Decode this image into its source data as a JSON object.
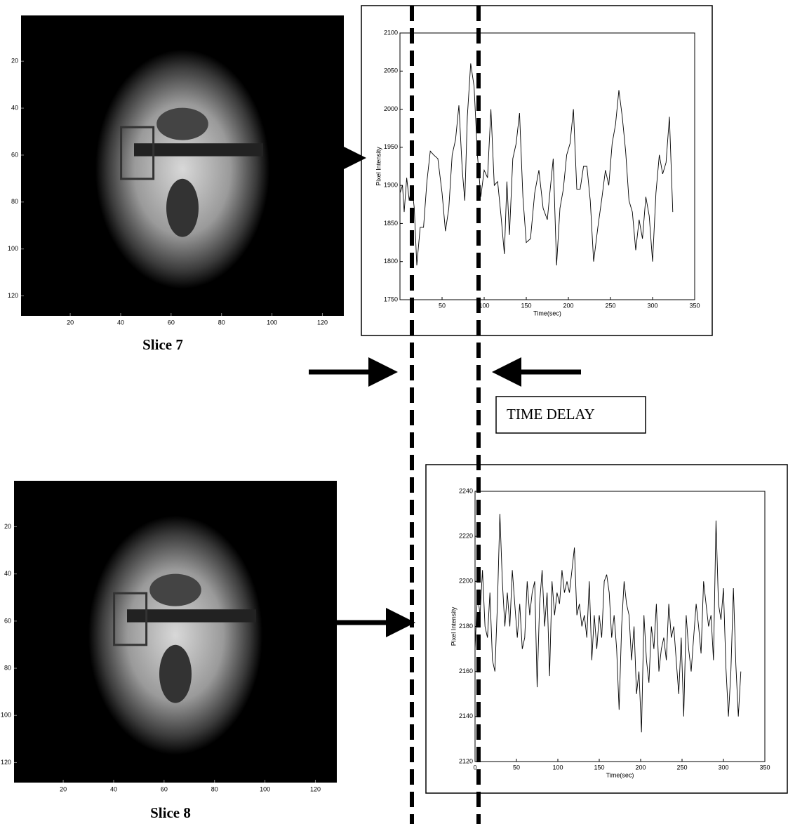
{
  "chart_data": [
    {
      "type": "image",
      "caption": "Slice 7",
      "xlim": [
        0.5,
        128.5
      ],
      "ylim": [
        0.5,
        128.5
      ],
      "xticks": [
        20,
        40,
        60,
        80,
        100,
        120
      ],
      "yticks": [
        20,
        40,
        60,
        80,
        100,
        120
      ]
    },
    {
      "type": "line",
      "xlabel": "Time(sec)",
      "ylabel": "Pixel Intensity",
      "color": "#000000",
      "xlim": [
        0,
        350
      ],
      "ylim": [
        1750,
        2100
      ],
      "xticks": [
        50,
        100,
        150,
        200,
        250,
        300,
        350
      ],
      "yticks": [
        1750,
        1800,
        1850,
        1900,
        1950,
        2000,
        2050,
        2100
      ],
      "x": [
        0,
        3,
        5,
        8,
        11,
        14,
        17,
        20,
        24,
        28,
        32,
        36,
        40,
        45,
        50,
        54,
        58,
        62,
        66,
        70,
        74,
        77,
        80,
        84,
        88,
        92,
        96,
        100,
        104,
        108,
        112,
        116,
        120,
        124,
        127,
        130,
        134,
        138,
        142,
        146,
        150,
        155,
        160,
        165,
        170,
        175,
        178,
        182,
        186,
        190,
        194,
        198,
        202,
        206,
        210,
        214,
        218,
        222,
        226,
        230,
        235,
        240,
        244,
        248,
        252,
        256,
        260,
        264,
        268,
        272,
        276,
        280,
        284,
        288,
        292,
        296,
        300,
        304,
        308,
        312,
        316,
        320,
        324
      ],
      "values": [
        1890,
        1900,
        1865,
        1910,
        1880,
        1900,
        1870,
        1795,
        1845,
        1845,
        1905,
        1945,
        1940,
        1935,
        1890,
        1840,
        1870,
        1940,
        1960,
        2005,
        1920,
        1880,
        1990,
        2060,
        2030,
        1940,
        1885,
        1920,
        1910,
        2000,
        1900,
        1905,
        1860,
        1810,
        1905,
        1835,
        1935,
        1955,
        1995,
        1885,
        1825,
        1830,
        1890,
        1920,
        1870,
        1855,
        1890,
        1935,
        1795,
        1870,
        1895,
        1940,
        1955,
        2000,
        1895,
        1895,
        1925,
        1925,
        1880,
        1800,
        1845,
        1885,
        1920,
        1900,
        1955,
        1980,
        2025,
        1990,
        1945,
        1880,
        1865,
        1815,
        1855,
        1830,
        1885,
        1860,
        1800,
        1890,
        1940,
        1915,
        1930,
        1990,
        1865
      ]
    },
    {
      "type": "image",
      "caption": "Slice 8",
      "xlim": [
        0.5,
        128.5
      ],
      "ylim": [
        0.5,
        128.5
      ],
      "xticks": [
        20,
        40,
        60,
        80,
        100,
        120
      ],
      "yticks": [
        20,
        40,
        60,
        80,
        100,
        120
      ]
    },
    {
      "type": "line",
      "xlabel": "Time(sec)",
      "ylabel": "Pixel Intensity",
      "color": "#000000",
      "xlim": [
        0,
        350
      ],
      "ylim": [
        2120,
        2240
      ],
      "xticks": [
        0,
        50,
        100,
        150,
        200,
        250,
        300,
        350
      ],
      "yticks": [
        2120,
        2140,
        2160,
        2180,
        2200,
        2220,
        2240
      ],
      "x": [
        0,
        3,
        6,
        9,
        12,
        15,
        18,
        21,
        24,
        27,
        30,
        33,
        36,
        39,
        42,
        45,
        48,
        51,
        54,
        57,
        60,
        63,
        66,
        69,
        72,
        75,
        78,
        81,
        84,
        87,
        90,
        93,
        96,
        99,
        102,
        105,
        108,
        111,
        114,
        117,
        120,
        123,
        126,
        129,
        132,
        135,
        138,
        141,
        144,
        147,
        150,
        153,
        156,
        159,
        162,
        165,
        168,
        171,
        174,
        177,
        180,
        183,
        186,
        189,
        192,
        195,
        198,
        201,
        204,
        207,
        210,
        213,
        216,
        219,
        222,
        225,
        228,
        231,
        234,
        237,
        240,
        243,
        246,
        249,
        252,
        255,
        258,
        261,
        264,
        267,
        270,
        273,
        276,
        279,
        282,
        285,
        288,
        291,
        294,
        297,
        300,
        303,
        306,
        309,
        312,
        315,
        318,
        321
      ],
      "values": [
        2170,
        2195,
        2185,
        2205,
        2180,
        2175,
        2195,
        2165,
        2160,
        2190,
        2230,
        2200,
        2180,
        2195,
        2180,
        2205,
        2190,
        2175,
        2190,
        2170,
        2175,
        2200,
        2185,
        2195,
        2200,
        2153,
        2190,
        2205,
        2180,
        2195,
        2158,
        2200,
        2185,
        2195,
        2190,
        2205,
        2195,
        2200,
        2195,
        2205,
        2215,
        2185,
        2190,
        2180,
        2185,
        2175,
        2200,
        2165,
        2185,
        2170,
        2185,
        2175,
        2200,
        2203,
        2195,
        2175,
        2185,
        2170,
        2143,
        2180,
        2200,
        2190,
        2185,
        2165,
        2180,
        2150,
        2160,
        2133,
        2185,
        2165,
        2155,
        2180,
        2170,
        2190,
        2160,
        2170,
        2175,
        2165,
        2190,
        2175,
        2180,
        2165,
        2150,
        2175,
        2140,
        2185,
        2170,
        2160,
        2175,
        2190,
        2180,
        2168,
        2200,
        2190,
        2180,
        2185,
        2165,
        2227,
        2190,
        2183,
        2197,
        2162,
        2140,
        2160,
        2197,
        2163,
        2140,
        2160
      ]
    }
  ],
  "annotation": "TIME DELAY"
}
